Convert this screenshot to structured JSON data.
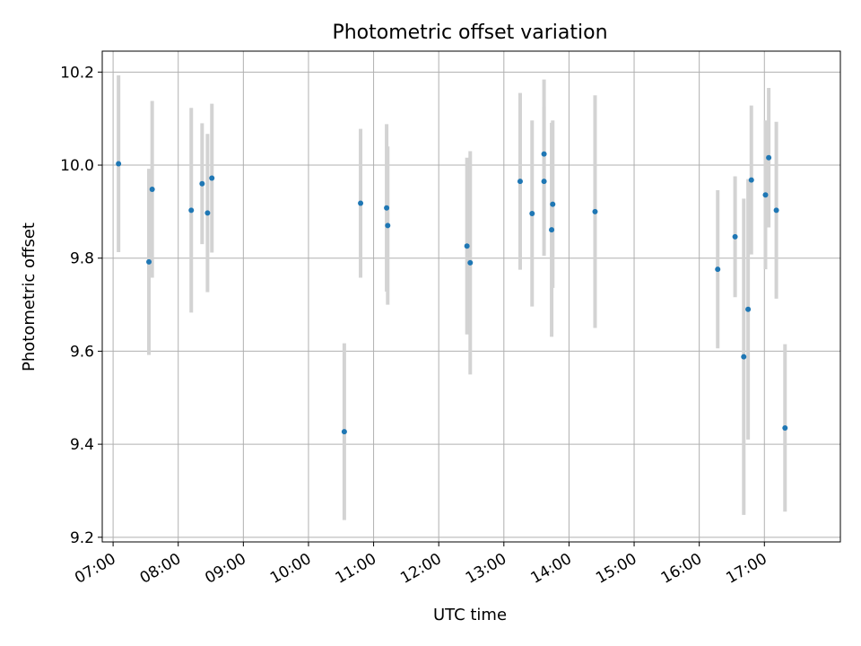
{
  "chart_data": {
    "type": "scatter",
    "title": "Photometric offset variation",
    "xlabel": "UTC time",
    "ylabel": "Photometric offset",
    "x_format": "HH:MM",
    "xlim": [
      "06:50",
      "18:10"
    ],
    "ylim": [
      9.19,
      10.245
    ],
    "xticks": [
      "07:00",
      "08:00",
      "09:00",
      "10:00",
      "11:00",
      "12:00",
      "13:00",
      "14:00",
      "15:00",
      "16:00",
      "17:00"
    ],
    "yticks": [
      9.2,
      9.4,
      9.6,
      9.8,
      10.0,
      10.2
    ],
    "grid": true,
    "marker_color": "#1f77b4",
    "errorbar_color": "#d3d3d3",
    "series": [
      {
        "points": [
          {
            "x": "07:05",
            "y": 10.003,
            "err": 0.19
          },
          {
            "x": "07:33",
            "y": 9.792,
            "err": 0.2
          },
          {
            "x": "07:36",
            "y": 9.948,
            "err": 0.19
          },
          {
            "x": "08:12",
            "y": 9.903,
            "err": 0.22
          },
          {
            "x": "08:22",
            "y": 9.96,
            "err": 0.13
          },
          {
            "x": "08:27",
            "y": 9.897,
            "err": 0.17
          },
          {
            "x": "08:31",
            "y": 9.972,
            "err": 0.16
          },
          {
            "x": "10:33",
            "y": 9.427,
            "err": 0.19
          },
          {
            "x": "10:48",
            "y": 9.918,
            "err": 0.16
          },
          {
            "x": "11:12",
            "y": 9.908,
            "err": 0.18
          },
          {
            "x": "11:13",
            "y": 9.87,
            "err": 0.17
          },
          {
            "x": "12:26",
            "y": 9.826,
            "err": 0.19
          },
          {
            "x": "12:29",
            "y": 9.79,
            "err": 0.24
          },
          {
            "x": "13:15",
            "y": 9.965,
            "err": 0.19
          },
          {
            "x": "13:26",
            "y": 9.896,
            "err": 0.2
          },
          {
            "x": "13:37",
            "y": 10.024,
            "err": 0.16
          },
          {
            "x": "13:37",
            "y": 9.965,
            "err": 0.16
          },
          {
            "x": "13:45",
            "y": 9.916,
            "err": 0.18
          },
          {
            "x": "13:44",
            "y": 9.861,
            "err": 0.23
          },
          {
            "x": "14:24",
            "y": 9.9,
            "err": 0.25
          },
          {
            "x": "16:17",
            "y": 9.776,
            "err": 0.17
          },
          {
            "x": "16:33",
            "y": 9.846,
            "err": 0.13
          },
          {
            "x": "16:41",
            "y": 9.588,
            "err": 0.34
          },
          {
            "x": "16:45",
            "y": 9.69,
            "err": 0.28
          },
          {
            "x": "16:48",
            "y": 9.968,
            "err": 0.16
          },
          {
            "x": "17:01",
            "y": 9.936,
            "err": 0.16
          },
          {
            "x": "17:04",
            "y": 10.016,
            "err": 0.15
          },
          {
            "x": "17:11",
            "y": 9.903,
            "err": 0.19
          },
          {
            "x": "17:19",
            "y": 9.435,
            "err": 0.18
          }
        ]
      }
    ]
  }
}
